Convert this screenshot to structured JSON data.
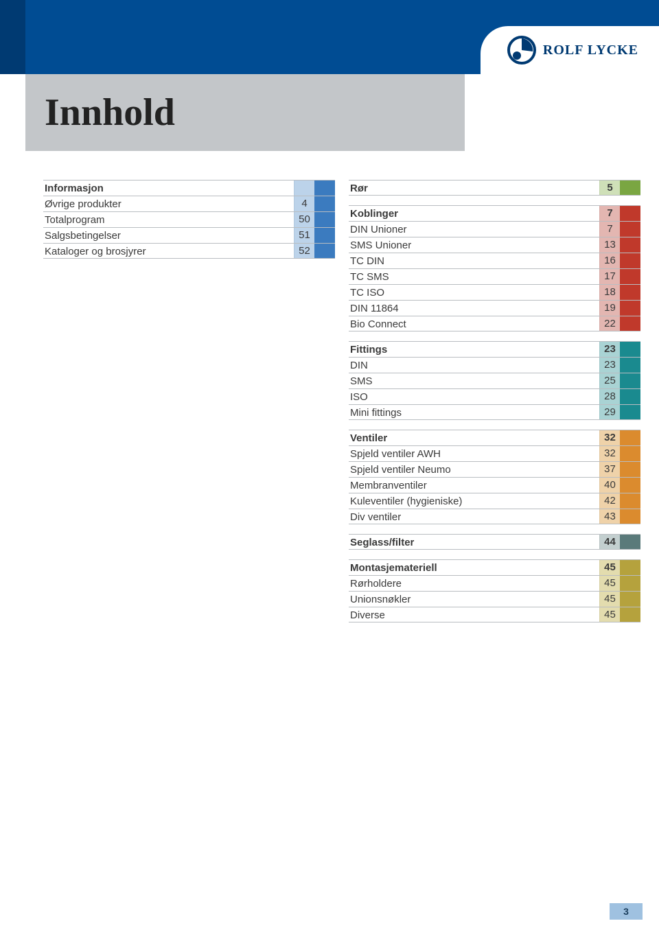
{
  "brand": {
    "name": "ROLF LYCKE"
  },
  "title": "Innhold",
  "page_number": "3",
  "colors": {
    "blue_fill": "#3b7bbf",
    "blue_num": "#bcd3ea",
    "green_fill": "#7aa642",
    "green_num": "#cfe0b8",
    "red_fill": "#c0392b",
    "red_num": "#e3b6b1",
    "teal_fill": "#1a8a8f",
    "teal_num": "#a9d3d4",
    "orange_fill": "#db8b2e",
    "orange_num": "#efd2a9",
    "slate_fill": "#5a7a7a",
    "slate_num": "#c3cfcf",
    "olive_fill": "#b5a23d",
    "olive_num": "#e3dcae"
  },
  "left": {
    "groups": [
      {
        "color_key": "blue",
        "rows": [
          {
            "label": "Informasjon",
            "page": "",
            "header": true
          },
          {
            "label": "Øvrige produkter",
            "page": "4"
          },
          {
            "label": "Totalprogram",
            "page": "50"
          },
          {
            "label": "Salgsbetingelser",
            "page": "51"
          },
          {
            "label": "Kataloger og brosjyrer",
            "page": "52"
          }
        ]
      }
    ]
  },
  "right": {
    "groups": [
      {
        "color_key": "green",
        "rows": [
          {
            "label": "Rør",
            "page": "5",
            "header": true
          }
        ]
      },
      {
        "color_key": "red",
        "rows": [
          {
            "label": "Koblinger",
            "page": "7",
            "header": true
          },
          {
            "label": "DIN Unioner",
            "page": "7"
          },
          {
            "label": "SMS Unioner",
            "page": "13"
          },
          {
            "label": "TC DIN",
            "page": "16"
          },
          {
            "label": "TC SMS",
            "page": "17"
          },
          {
            "label": "TC ISO",
            "page": "18"
          },
          {
            "label": "DIN 11864",
            "page": "19"
          },
          {
            "label": "Bio Connect",
            "page": "22"
          }
        ]
      },
      {
        "color_key": "teal",
        "rows": [
          {
            "label": "Fittings",
            "page": "23",
            "header": true
          },
          {
            "label": "DIN",
            "page": "23"
          },
          {
            "label": "SMS",
            "page": "25"
          },
          {
            "label": "ISO",
            "page": "28"
          },
          {
            "label": "Mini fittings",
            "page": "29"
          }
        ]
      },
      {
        "color_key": "orange",
        "rows": [
          {
            "label": "Ventiler",
            "page": "32",
            "header": true
          },
          {
            "label": "Spjeld ventiler AWH",
            "page": "32"
          },
          {
            "label": "Spjeld ventiler Neumo",
            "page": "37"
          },
          {
            "label": "Membranventiler",
            "page": "40"
          },
          {
            "label": "Kuleventiler (hygieniske)",
            "page": "42"
          },
          {
            "label": "Div ventiler",
            "page": "43"
          }
        ]
      },
      {
        "color_key": "slate",
        "rows": [
          {
            "label": "Seglass/filter",
            "page": "44",
            "header": true
          }
        ]
      },
      {
        "color_key": "olive",
        "rows": [
          {
            "label": "Montasjemateriell",
            "page": "45",
            "header": true
          },
          {
            "label": "Rørholdere",
            "page": "45"
          },
          {
            "label": "Unionsnøkler",
            "page": "45"
          },
          {
            "label": "Diverse",
            "page": "45"
          }
        ]
      }
    ]
  }
}
